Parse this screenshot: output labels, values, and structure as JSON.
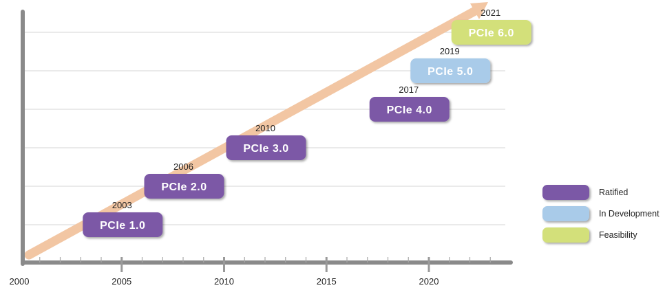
{
  "chart_data": {
    "type": "timeline",
    "x_ticks": [
      "2000",
      "2005",
      "2010",
      "2015",
      "2020"
    ],
    "xlim": [
      2000,
      2024
    ],
    "grid": true,
    "events": [
      {
        "year": 2003,
        "year_label": "2003",
        "label": "PCIe 1.0",
        "status": "Ratified",
        "level": 1
      },
      {
        "year": 2006,
        "year_label": "2006",
        "label": "PCIe 2.0",
        "status": "Ratified",
        "level": 2
      },
      {
        "year": 2010,
        "year_label": "2010",
        "label": "PCIe 3.0",
        "status": "Ratified",
        "level": 3
      },
      {
        "year": 2017,
        "year_label": "2017",
        "label": "PCIe 4.0",
        "status": "Ratified",
        "level": 4
      },
      {
        "year": 2019,
        "year_label": "2019",
        "label": "PCIe 5.0",
        "status": "In Development",
        "level": 5
      },
      {
        "year": 2021,
        "year_label": "2021",
        "label": "PCIe 6.0",
        "status": "Feasibility",
        "level": 6
      }
    ],
    "legend": {
      "placement": "right",
      "items": [
        {
          "label": "Ratified",
          "color": "#7b58a6"
        },
        {
          "label": "In Development",
          "color": "#a9cbe9"
        },
        {
          "label": "Feasibility",
          "color": "#d3e07a"
        }
      ]
    },
    "colors": {
      "trend_arrow": "#f2c6a3",
      "axis": "#8a8a8a",
      "grid": "#dddddd"
    }
  }
}
